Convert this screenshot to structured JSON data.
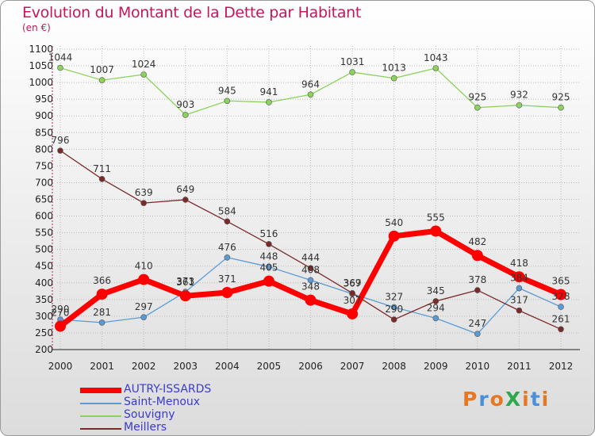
{
  "title": "Evolution du Montant de la Dette par Habitant",
  "subtitle": "(en €)",
  "logo": "ProXiti",
  "colors": {
    "title": "#c2185b",
    "legend_text": "#3a3acd",
    "grid": "#bbbbbb"
  },
  "chart_data": {
    "type": "line",
    "title": "Evolution du Montant de la Dette par Habitant",
    "subtitle": "(en €)",
    "xlabel": "",
    "ylabel": "",
    "x": [
      "2000",
      "2001",
      "2002",
      "2003",
      "2004",
      "2005",
      "2006",
      "2007",
      "2008",
      "2009",
      "2010",
      "2011",
      "2012"
    ],
    "ylim": [
      200,
      1100
    ],
    "yticks": [
      200,
      250,
      300,
      350,
      400,
      450,
      500,
      550,
      600,
      650,
      700,
      750,
      800,
      850,
      900,
      950,
      1000,
      1050,
      1100
    ],
    "grid": true,
    "legend_position": "bottom-left",
    "series": [
      {
        "name": "AUTRY-ISSARDS",
        "color": "#ff0000",
        "width": 7,
        "marker": 7,
        "values": [
          270,
          366,
          410,
          361,
          371,
          405,
          348,
          307,
          540,
          555,
          482,
          418,
          365
        ]
      },
      {
        "name": "Saint-Menoux",
        "color": "#5b9bd5",
        "width": 1.3,
        "marker": 3.5,
        "values": [
          290,
          281,
          297,
          373,
          476,
          448,
          408,
          367,
          327,
          294,
          247,
          384,
          328
        ]
      },
      {
        "name": "Souvigny",
        "color": "#8bd35a",
        "width": 1.3,
        "marker": 3.5,
        "values": [
          1044,
          1007,
          1024,
          903,
          945,
          941,
          964,
          1031,
          1013,
          1043,
          925,
          932,
          925
        ]
      },
      {
        "name": "Meillers",
        "color": "#7b2a2a",
        "width": 1.3,
        "marker": 3.5,
        "values": [
          796,
          711,
          639,
          649,
          584,
          516,
          444,
          369,
          290,
          345,
          378,
          317,
          261
        ]
      }
    ],
    "data_labels": {
      "AUTRY-ISSARDS": [
        "270",
        "366",
        "410",
        "361",
        "371",
        "405",
        "348",
        "307",
        "540",
        "555",
        "482",
        "418",
        "365"
      ],
      "Saint-Menoux": [
        "290",
        "281",
        "297",
        "373",
        "476",
        "448",
        "408",
        "367",
        "327",
        "294",
        "247",
        "384",
        "328"
      ],
      "Souvigny": [
        "1044",
        "1007",
        "1024",
        "903",
        "945",
        "941",
        "964",
        "1031",
        "1013",
        "1043",
        "925",
        "932",
        "925"
      ],
      "Meillers": [
        "796",
        "711",
        "639",
        "649",
        "584",
        "516",
        "444",
        "369",
        "290",
        "345",
        "378",
        "317",
        "261"
      ]
    }
  },
  "legend": [
    {
      "label": "AUTRY-ISSARDS",
      "color": "#ff0000"
    },
    {
      "label": "Saint-Menoux",
      "color": "#5b9bd5"
    },
    {
      "label": "Souvigny",
      "color": "#8bd35a"
    },
    {
      "label": "Meillers",
      "color": "#7b2a2a"
    }
  ]
}
